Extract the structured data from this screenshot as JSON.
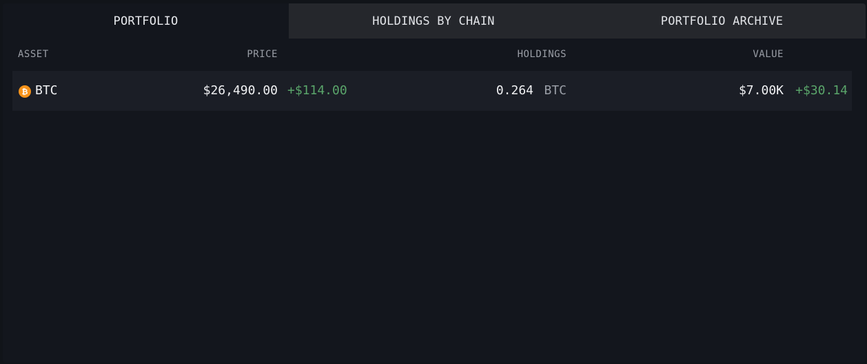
{
  "tabs": [
    {
      "label": "PORTFOLIO",
      "active": true
    },
    {
      "label": "HOLDINGS BY CHAIN",
      "active": false
    },
    {
      "label": "PORTFOLIO ARCHIVE",
      "active": false
    }
  ],
  "table": {
    "headers": {
      "asset": "ASSET",
      "price": "PRICE",
      "holdings": "HOLDINGS",
      "value": "VALUE"
    },
    "rows": [
      {
        "icon": "bitcoin-icon",
        "icon_glyph": "₿",
        "symbol": "BTC",
        "price": "$26,490.00",
        "price_change": "+$114.00",
        "holdings_amount": "0.264",
        "holdings_unit": "BTC",
        "value": "$7.00K",
        "value_change": "+$30.14"
      }
    ]
  },
  "colors": {
    "background": "#13161d",
    "row_background": "#1b1e26",
    "inactive_tab": "#25272c",
    "positive": "#5aa56a",
    "bitcoin": "#f7931a"
  }
}
